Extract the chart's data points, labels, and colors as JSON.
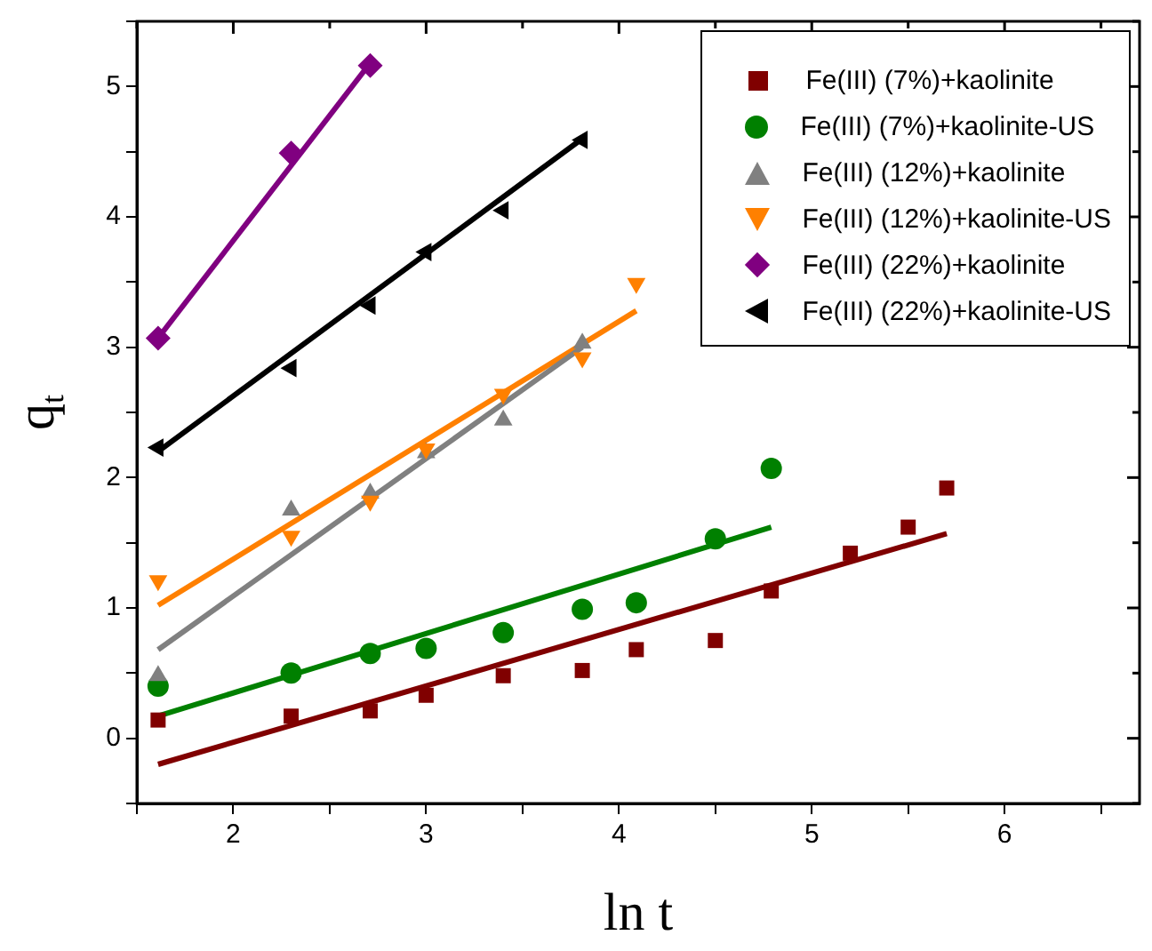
{
  "chart_data": {
    "type": "scatter",
    "xlabel": "ln t",
    "ylabel": "q$_{t}$",
    "xlim": [
      1.5,
      6.7
    ],
    "xticks": [
      {
        "value": 1.5,
        "label": null
      },
      2,
      {
        "value": 2.5,
        "label": null
      },
      3,
      {
        "value": 3.5,
        "label": null
      },
      4,
      {
        "value": 4.5,
        "label": null
      },
      5,
      {
        "value": 5.5,
        "label": null
      },
      6,
      {
        "value": 6.5,
        "label": null
      }
    ],
    "ylim": [
      -0.5,
      5.5
    ],
    "yticks": [
      {
        "value": -0.5,
        "label": null
      },
      0,
      {
        "value": 0.5,
        "label": null
      },
      1,
      {
        "value": 1.5,
        "label": null
      },
      2,
      {
        "value": 2.5,
        "label": null
      },
      3,
      {
        "value": 3.5,
        "label": null
      },
      4,
      {
        "value": 4.5,
        "label": null
      },
      5,
      {
        "value": 5.5,
        "label": null
      }
    ],
    "grid": false,
    "legend": "top right",
    "series": [
      {
        "name": "Fe(III) (7%)+kaolinite",
        "color": "#800000",
        "marker": "square",
        "x": [
          1.61,
          2.3,
          2.71,
          3.0,
          3.4,
          3.81,
          4.09,
          4.5,
          4.79,
          5.2,
          5.5,
          5.7
        ],
        "values": [
          0.14,
          0.17,
          0.21,
          0.33,
          0.48,
          0.52,
          0.68,
          0.75,
          1.13,
          1.42,
          1.62,
          1.92
        ]
      },
      {
        "name": "Fe(III) (7%)+kaolinite-US",
        "color": "#008000",
        "marker": "circle",
        "x": [
          1.61,
          2.3,
          2.71,
          3.0,
          3.4,
          3.81,
          4.09,
          4.5,
          4.79
        ],
        "values": [
          0.4,
          0.5,
          0.65,
          0.69,
          0.81,
          0.99,
          1.04,
          1.53,
          2.07
        ]
      },
      {
        "name": "Fe(III) (12%)+kaolinite",
        "color": "#808080",
        "marker": "triangle",
        "x": [
          1.61,
          2.3,
          2.71,
          3.0,
          3.4,
          3.81
        ],
        "values": [
          0.48,
          1.75,
          1.88,
          2.19,
          2.44,
          3.03
        ]
      },
      {
        "name": "Fe(III) (12%)+kaolinite-US",
        "color": "#ff8000",
        "marker": "triangle-down",
        "x": [
          1.61,
          2.3,
          2.71,
          3.0,
          3.4,
          3.81,
          4.09
        ],
        "values": [
          1.21,
          1.55,
          1.82,
          2.22,
          2.64,
          2.92,
          3.49
        ]
      },
      {
        "name": "Fe(III) (22%)+kaolinite",
        "color": "#800080",
        "marker": "diamond",
        "x": [
          1.61,
          2.3,
          2.71
        ],
        "values": [
          3.07,
          4.49,
          5.16
        ]
      },
      {
        "name": "Fe(III) (22%)+kaolinite-US",
        "color": "#000000",
        "marker": "triangle-left",
        "x": [
          1.61,
          2.3,
          2.71,
          3.0,
          3.4,
          3.81
        ],
        "values": [
          2.23,
          2.84,
          3.32,
          3.73,
          4.05,
          4.59
        ]
      },
      {
        "type": "line",
        "color": "#800000",
        "x": [
          1.61,
          5.7
        ],
        "values": [
          -0.2,
          1.57
        ]
      },
      {
        "type": "line",
        "color": "#008000",
        "x": [
          1.61,
          4.79
        ],
        "values": [
          0.17,
          1.62
        ]
      },
      {
        "type": "line",
        "color": "#808080",
        "x": [
          1.61,
          3.81
        ],
        "values": [
          0.68,
          3.0
        ]
      },
      {
        "type": "line",
        "color": "#ff8000",
        "x": [
          1.61,
          4.09
        ],
        "values": [
          1.02,
          3.28
        ]
      },
      {
        "type": "line",
        "color": "#800080",
        "x": [
          1.61,
          2.71
        ],
        "values": [
          3.07,
          5.18
        ]
      },
      {
        "type": "line",
        "color": "#000000",
        "x": [
          1.61,
          3.81
        ],
        "values": [
          2.2,
          4.6
        ]
      }
    ]
  }
}
